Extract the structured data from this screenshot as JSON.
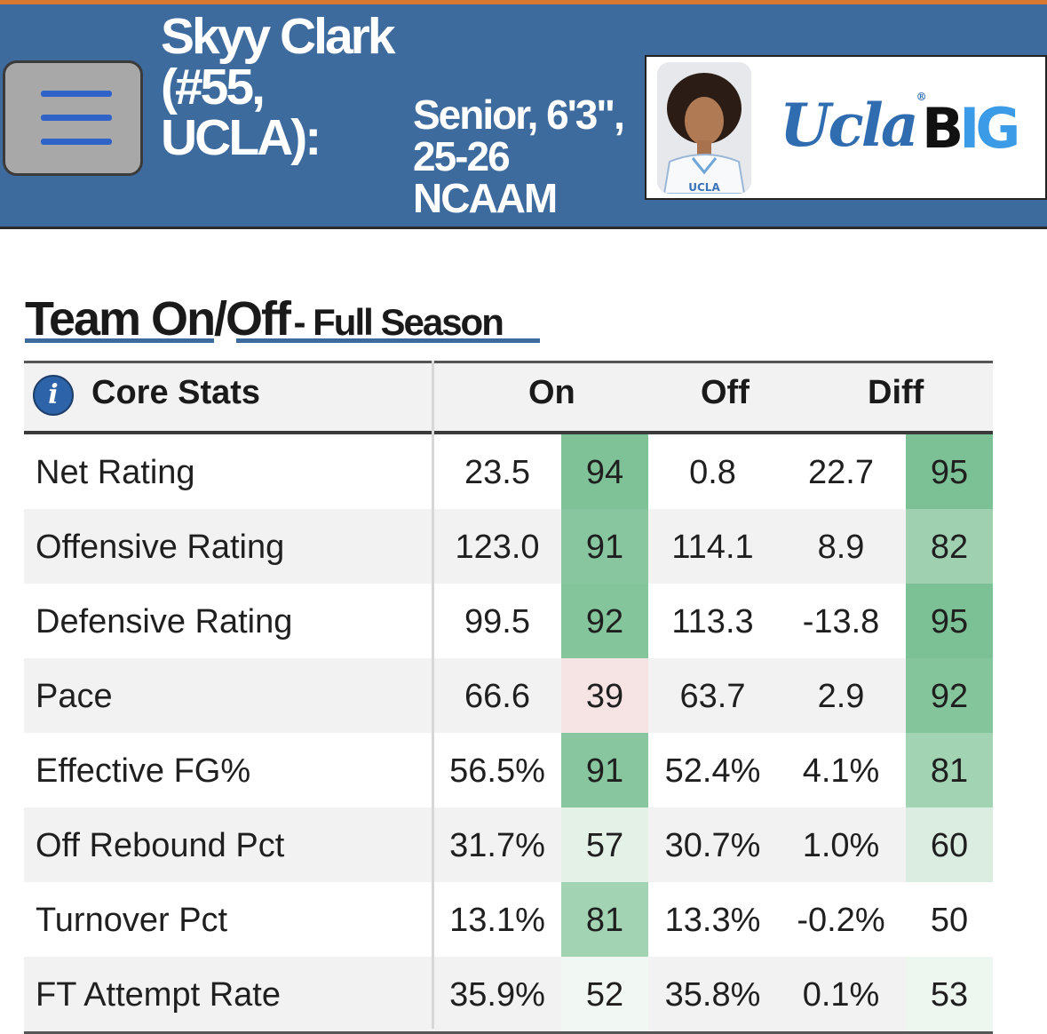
{
  "header": {
    "player_name": "Skyy Clark (#55, UCLA):",
    "player_meta": "Senior, 6'3\", 25-26 NCAAM",
    "team_logo_text": "Ucla",
    "conference_logo": {
      "b": "B",
      "ig": "IG"
    }
  },
  "section": {
    "title": "Team On/Off",
    "subtitle": "- Full Season"
  },
  "table": {
    "headers": {
      "core": "Core Stats",
      "on": "On",
      "off": "Off",
      "diff": "Diff"
    },
    "rows": [
      {
        "label": "Net Rating",
        "on": "23.5",
        "on_pct": "94",
        "off": "0.8",
        "diff": "22.7",
        "diff_pct": "95"
      },
      {
        "label": "Offensive Rating",
        "on": "123.0",
        "on_pct": "91",
        "off": "114.1",
        "diff": "8.9",
        "diff_pct": "82"
      },
      {
        "label": "Defensive Rating",
        "on": "99.5",
        "on_pct": "92",
        "off": "113.3",
        "diff": "-13.8",
        "diff_pct": "95"
      },
      {
        "label": "Pace",
        "on": "66.6",
        "on_pct": "39",
        "off": "63.7",
        "diff": "2.9",
        "diff_pct": "92"
      },
      {
        "label": "Effective FG%",
        "on": "56.5%",
        "on_pct": "91",
        "off": "52.4%",
        "diff": "4.1%",
        "diff_pct": "81"
      },
      {
        "label": "Off Rebound Pct",
        "on": "31.7%",
        "on_pct": "57",
        "off": "30.7%",
        "diff": "1.0%",
        "diff_pct": "60"
      },
      {
        "label": "Turnover Pct",
        "on": "13.1%",
        "on_pct": "81",
        "off": "13.3%",
        "diff": "-0.2%",
        "diff_pct": "50"
      },
      {
        "label": "FT Attempt Rate",
        "on": "35.9%",
        "on_pct": "52",
        "off": "35.8%",
        "diff": "0.1%",
        "diff_pct": "53"
      }
    ]
  },
  "colors": {
    "header_bg": "#3e6b9e",
    "accent_orange": "#d9762f",
    "pct_green_strong": "#83c49a",
    "pct_red_light": "#f6e4e4"
  }
}
